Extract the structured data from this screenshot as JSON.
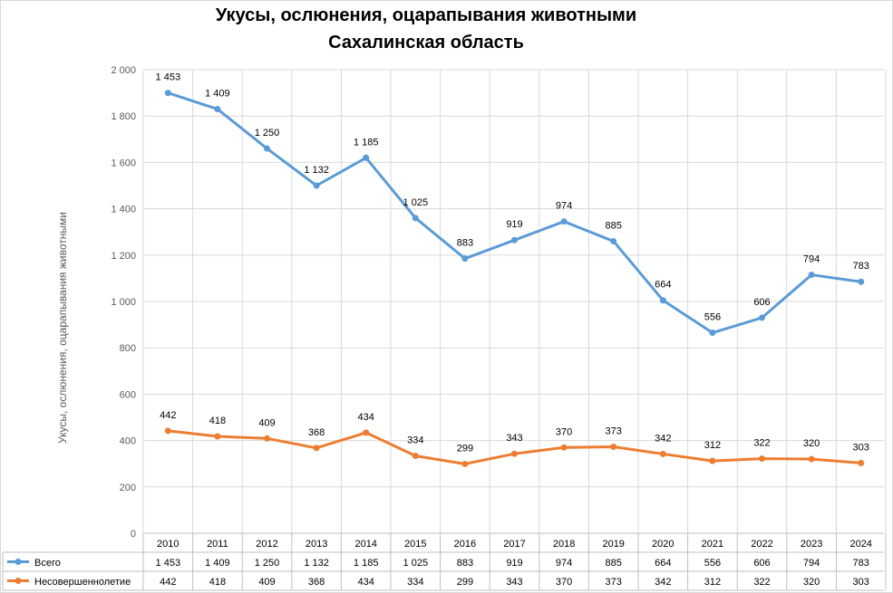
{
  "chart_data": {
    "type": "line",
    "title": "Укусы, ослюнения, оцарапывания животными",
    "subtitle": "Сахалинская область",
    "ylabel": "Укусы, ослюнения, оцарапывания животными",
    "ylim": [
      0,
      2000
    ],
    "yticks": [
      0,
      200,
      400,
      600,
      800,
      1000,
      1200,
      1400,
      1600,
      1800,
      2000
    ],
    "ytick_labels": [
      "0",
      "200",
      "400",
      "600",
      "800",
      "1 000",
      "1 200",
      "1 400",
      "1 600",
      "1 800",
      "2 000"
    ],
    "grid": true,
    "categories": [
      "2010",
      "2011",
      "2012",
      "2013",
      "2014",
      "2015",
      "2016",
      "2017",
      "2018",
      "2019",
      "2020",
      "2021",
      "2022",
      "2023",
      "2024"
    ],
    "series": [
      {
        "name": "Всего",
        "color": "#5b9bd5",
        "values": [
          1900,
          1830,
          1660,
          1500,
          1620,
          1360,
          1185,
          1265,
          1345,
          1260,
          1005,
          865,
          930,
          1115,
          1085
        ],
        "labels": [
          "1 453",
          "1 409",
          "1 250",
          "1 132",
          "1 185",
          "1 025",
          "883",
          "919",
          "974",
          "885",
          "664",
          "556",
          "606",
          "794",
          "783"
        ]
      },
      {
        "name": "Несовершеннолетие",
        "color": "#ed7d31",
        "values": [
          442,
          418,
          409,
          368,
          434,
          334,
          299,
          343,
          370,
          373,
          342,
          312,
          322,
          320,
          303
        ],
        "labels": [
          "442",
          "418",
          "409",
          "368",
          "434",
          "334",
          "299",
          "343",
          "370",
          "373",
          "342",
          "312",
          "322",
          "320",
          "303"
        ]
      }
    ],
    "data_table": true
  }
}
